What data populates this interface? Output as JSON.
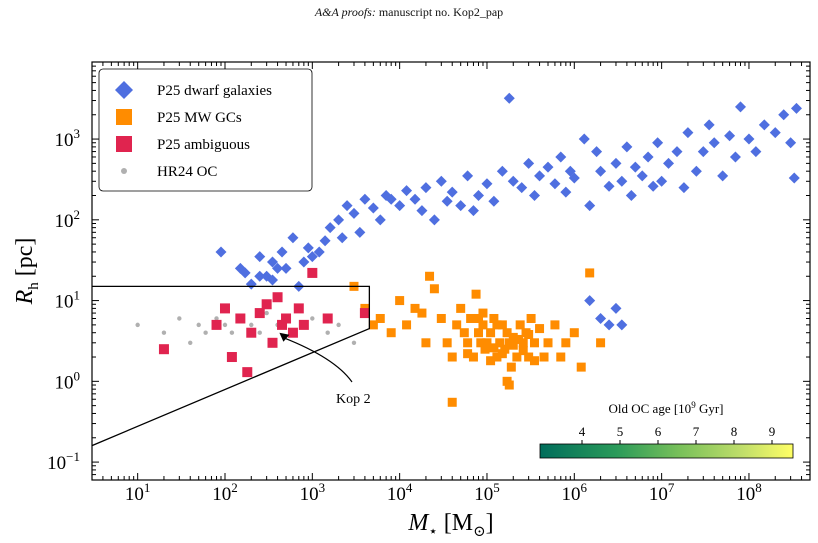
{
  "header": {
    "journal": "A&A proofs:",
    "manuscript": "manuscript no. Kop2_pap"
  },
  "chart_data": {
    "type": "scatter",
    "xlabel_symbol": "M",
    "xlabel_sub": "⋆",
    "xlabel_unit": "[M",
    "xlabel_unit_sub": "⊙",
    "xlabel_close": "]",
    "ylabel_symbol": "R",
    "ylabel_sub": "h",
    "ylabel_unit": "[pc]",
    "x_scale": "log",
    "y_scale": "log",
    "xlim": [
      3,
      500000000
    ],
    "ylim": [
      0.06,
      9000
    ],
    "x_ticks": [
      {
        "value": 10,
        "base": "10",
        "exp": "1"
      },
      {
        "value": 100,
        "base": "10",
        "exp": "2"
      },
      {
        "value": 1000,
        "base": "10",
        "exp": "3"
      },
      {
        "value": 10000,
        "base": "10",
        "exp": "4"
      },
      {
        "value": 100000,
        "base": "10",
        "exp": "5"
      },
      {
        "value": 1000000,
        "base": "10",
        "exp": "6"
      },
      {
        "value": 10000000,
        "base": "10",
        "exp": "7"
      },
      {
        "value": 100000000,
        "base": "10",
        "exp": "8"
      }
    ],
    "y_ticks": [
      {
        "value": 0.1,
        "base": "10",
        "exp": "−1"
      },
      {
        "value": 1,
        "base": "10",
        "exp": "0"
      },
      {
        "value": 10,
        "base": "10",
        "exp": "1"
      },
      {
        "value": 100,
        "base": "10",
        "exp": "2"
      },
      {
        "value": 1000,
        "base": "10",
        "exp": "3"
      }
    ],
    "legend_position": "top-left",
    "series": [
      {
        "name": "P25 dwarf galaxies",
        "marker": "diamond",
        "color": "#4f6fe0",
        "points": [
          [
            90,
            40
          ],
          [
            150,
            25
          ],
          [
            170,
            22
          ],
          [
            200,
            16
          ],
          [
            250,
            35
          ],
          [
            250,
            20
          ],
          [
            300,
            20
          ],
          [
            350,
            30
          ],
          [
            350,
            18
          ],
          [
            400,
            25
          ],
          [
            450,
            40
          ],
          [
            500,
            25
          ],
          [
            600,
            60
          ],
          [
            700,
            15
          ],
          [
            800,
            30
          ],
          [
            900,
            45
          ],
          [
            1000,
            35
          ],
          [
            1200,
            40
          ],
          [
            1400,
            55
          ],
          [
            1600,
            80
          ],
          [
            2000,
            100
          ],
          [
            2200,
            60
          ],
          [
            2500,
            150
          ],
          [
            3000,
            120
          ],
          [
            3500,
            70
          ],
          [
            4000,
            180
          ],
          [
            5000,
            140
          ],
          [
            6000,
            100
          ],
          [
            7000,
            200
          ],
          [
            8000,
            180
          ],
          [
            10000,
            150
          ],
          [
            12000,
            230
          ],
          [
            15000,
            180
          ],
          [
            18000,
            130
          ],
          [
            20000,
            250
          ],
          [
            25000,
            100
          ],
          [
            30000,
            300
          ],
          [
            35000,
            170
          ],
          [
            40000,
            220
          ],
          [
            50000,
            150
          ],
          [
            60000,
            350
          ],
          [
            70000,
            130
          ],
          [
            80000,
            200
          ],
          [
            100000,
            280
          ],
          [
            120000,
            170
          ],
          [
            150000,
            400
          ],
          [
            180000,
            3200
          ],
          [
            200000,
            300
          ],
          [
            250000,
            250
          ],
          [
            300000,
            500
          ],
          [
            350000,
            200
          ],
          [
            400000,
            350
          ],
          [
            500000,
            450
          ],
          [
            600000,
            280
          ],
          [
            700000,
            600
          ],
          [
            800000,
            220
          ],
          [
            900000,
            400
          ],
          [
            1000000,
            330
          ],
          [
            1300000,
            1000
          ],
          [
            1500000,
            150
          ],
          [
            1800000,
            700
          ],
          [
            2000000,
            400
          ],
          [
            2500000,
            260
          ],
          [
            3000000,
            500
          ],
          [
            3500000,
            300
          ],
          [
            4000000,
            800
          ],
          [
            4500000,
            200
          ],
          [
            5000000,
            450
          ],
          [
            6000000,
            350
          ],
          [
            7000000,
            600
          ],
          [
            8000000,
            260
          ],
          [
            9000000,
            900
          ],
          [
            10000000,
            300
          ],
          [
            12000000,
            500
          ],
          [
            15000000,
            700
          ],
          [
            18000000,
            250
          ],
          [
            20000000,
            1200
          ],
          [
            25000000,
            400
          ],
          [
            30000000,
            700
          ],
          [
            35000000,
            1500
          ],
          [
            40000000,
            900
          ],
          [
            50000000,
            350
          ],
          [
            60000000,
            1100
          ],
          [
            70000000,
            600
          ],
          [
            80000000,
            2500
          ],
          [
            100000000,
            1000
          ],
          [
            120000000,
            700
          ],
          [
            150000000,
            1500
          ],
          [
            200000000,
            1200
          ],
          [
            250000000,
            2000
          ],
          [
            300000000,
            900
          ],
          [
            350000000,
            2400
          ],
          [
            330000000,
            330
          ],
          [
            1500000,
            10
          ],
          [
            2000000,
            6
          ],
          [
            2500000,
            5
          ],
          [
            3000000,
            8
          ],
          [
            3500000,
            5
          ]
        ]
      },
      {
        "name": "P25 MW GCs",
        "marker": "square",
        "color": "#ff8c00",
        "points": [
          [
            3000,
            15
          ],
          [
            4000,
            8
          ],
          [
            5000,
            5
          ],
          [
            6000,
            6
          ],
          [
            8000,
            4
          ],
          [
            10000,
            10
          ],
          [
            12000,
            5
          ],
          [
            15000,
            8
          ],
          [
            18000,
            7
          ],
          [
            20000,
            3
          ],
          [
            22000,
            20
          ],
          [
            25000,
            14
          ],
          [
            30000,
            6
          ],
          [
            35000,
            3
          ],
          [
            40000,
            2
          ],
          [
            45000,
            5
          ],
          [
            50000,
            8
          ],
          [
            55000,
            4
          ],
          [
            60000,
            3
          ],
          [
            65000,
            6
          ],
          [
            70000,
            2
          ],
          [
            75000,
            12
          ],
          [
            80000,
            4
          ],
          [
            85000,
            3
          ],
          [
            90000,
            5
          ],
          [
            95000,
            2.5
          ],
          [
            100000,
            3
          ],
          [
            110000,
            4
          ],
          [
            120000,
            6
          ],
          [
            130000,
            2
          ],
          [
            140000,
            3
          ],
          [
            150000,
            5
          ],
          [
            160000,
            2.5
          ],
          [
            170000,
            4
          ],
          [
            180000,
            3
          ],
          [
            190000,
            1.5
          ],
          [
            200000,
            3.5
          ],
          [
            220000,
            2
          ],
          [
            240000,
            5
          ],
          [
            260000,
            3
          ],
          [
            280000,
            4
          ],
          [
            300000,
            2
          ],
          [
            320000,
            6
          ],
          [
            350000,
            3
          ],
          [
            400000,
            4.5
          ],
          [
            450000,
            2
          ],
          [
            500000,
            3
          ],
          [
            600000,
            5
          ],
          [
            700000,
            2
          ],
          [
            800000,
            3
          ],
          [
            1000000,
            4
          ],
          [
            1200000,
            1.5
          ],
          [
            1500000,
            22
          ],
          [
            2000000,
            3
          ],
          [
            80000,
            6
          ],
          [
            90000,
            7
          ],
          [
            110000,
            1.8
          ],
          [
            130000,
            5
          ],
          [
            150000,
            2.2
          ],
          [
            170000,
            1
          ],
          [
            200000,
            2.8
          ],
          [
            230000,
            3.3
          ],
          [
            260000,
            2.4
          ],
          [
            300000,
            3.8
          ],
          [
            350000,
            1.8
          ],
          [
            180000,
            0.9
          ],
          [
            120000,
            2.6
          ],
          [
            60000,
            2.2
          ],
          [
            40000,
            0.55
          ]
        ]
      },
      {
        "name": "P25 ambiguous",
        "marker": "square",
        "color": "#e0244f",
        "points": [
          [
            20,
            2.5
          ],
          [
            80,
            5
          ],
          [
            100,
            8
          ],
          [
            120,
            2
          ],
          [
            150,
            6
          ],
          [
            180,
            1.3
          ],
          [
            200,
            4
          ],
          [
            250,
            7
          ],
          [
            300,
            9
          ],
          [
            350,
            3
          ],
          [
            400,
            11
          ],
          [
            450,
            5
          ],
          [
            500,
            6
          ],
          [
            600,
            4
          ],
          [
            700,
            8
          ],
          [
            800,
            5
          ],
          [
            1000,
            22
          ],
          [
            1500,
            6
          ],
          [
            4000,
            7
          ]
        ]
      },
      {
        "name": "HR24 OC",
        "marker": "circle",
        "color": "#b0b0b0",
        "points": [
          [
            10,
            5
          ],
          [
            20,
            4
          ],
          [
            30,
            6
          ],
          [
            40,
            3
          ],
          [
            50,
            5
          ],
          [
            60,
            4
          ],
          [
            80,
            6
          ],
          [
            100,
            5
          ],
          [
            120,
            4
          ],
          [
            150,
            6
          ],
          [
            200,
            5
          ],
          [
            250,
            4
          ],
          [
            300,
            7
          ],
          [
            400,
            5
          ],
          [
            500,
            6
          ],
          [
            600,
            4
          ],
          [
            800,
            5
          ],
          [
            1000,
            6
          ],
          [
            1500,
            4
          ],
          [
            2000,
            5
          ],
          [
            3000,
            3
          ]
        ]
      }
    ],
    "kop2": {
      "label": "Kop 2",
      "x": 420,
      "y": 4.0
    },
    "selection_box": [
      [
        3,
        15
      ],
      [
        4500,
        15
      ],
      [
        4500,
        4.5
      ],
      [
        3,
        0.16
      ]
    ],
    "colorbar": {
      "label": "Old OC age [10",
      "label_exp": "9",
      "label_unit": " Gyr]",
      "ticks": [
        "4",
        "5",
        "6",
        "7",
        "8",
        "9"
      ],
      "colors": [
        "#006d5b",
        "#2a9a5a",
        "#78c05a",
        "#c0de6a",
        "#ffff66"
      ]
    }
  }
}
